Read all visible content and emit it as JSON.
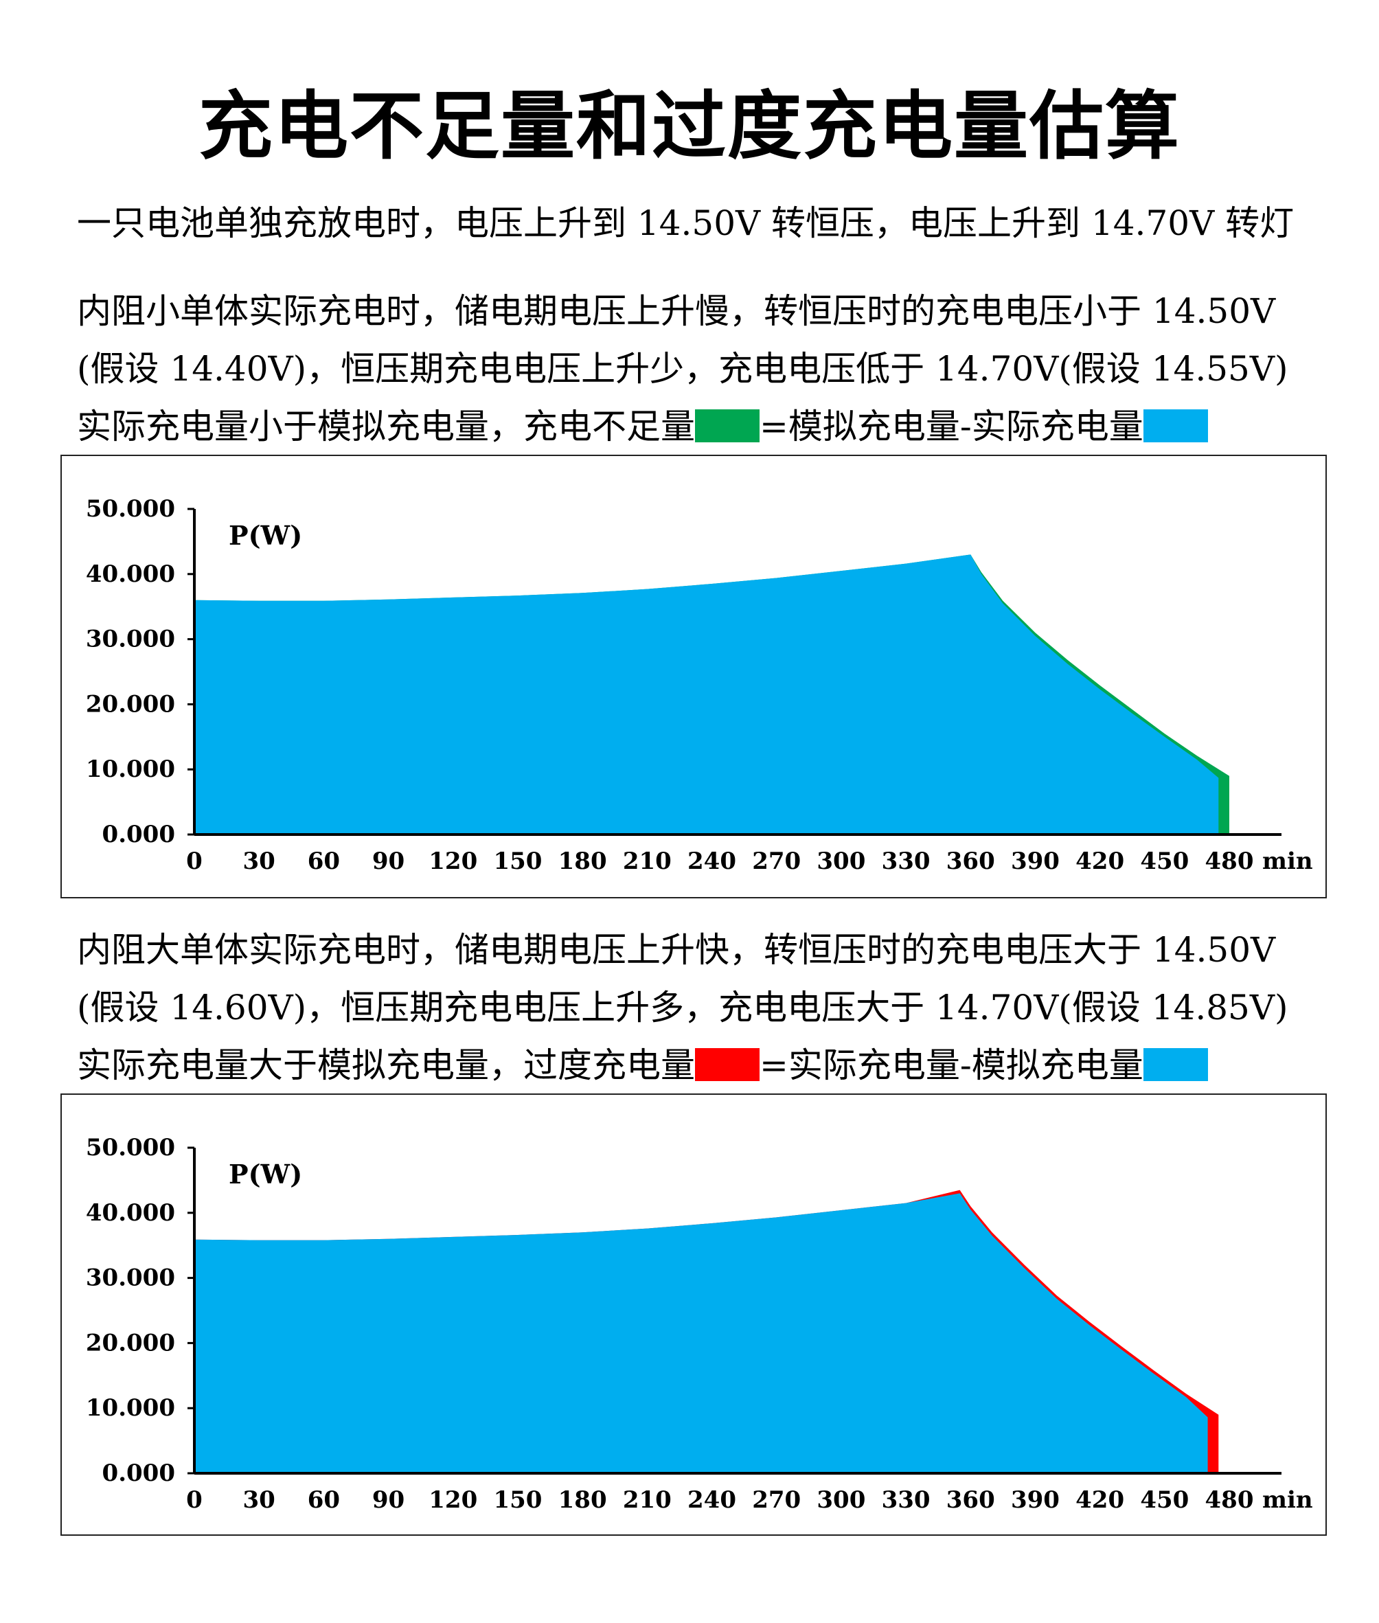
{
  "title": "充电不足量和过度充电量估算",
  "intro": "一只电池单独充放电时，电压上升到 14.50V 转恒压，电压上升到 14.70V 转灯",
  "section1": {
    "lines": [
      "内阻小单体实际充电时，储电期电压上升慢，转恒压时的充电电压小于 14.50V",
      "(假设 14.40V)，恒压期充电电压上升少，充电电压低于 14.70V(假设 14.55V)"
    ],
    "legend_text_a": "实际充电量小于模拟充电量，充电不足量",
    "legend_text_b": "=模拟充电量-实际充电量",
    "highlight_color": "#00a651",
    "area_color": "#00aeef"
  },
  "section2": {
    "lines": [
      "内阻大单体实际充电时，储电期电压上升快，转恒压时的充电电压大于 14.50V",
      "(假设 14.60V)，恒压期充电电压上升多，充电电压大于 14.70V(假设 14.85V)"
    ],
    "legend_text_a": "实际充电量大于模拟充电量，过度充电量",
    "legend_text_b": "=实际充电量-模拟充电量",
    "highlight_color": "#ff0000",
    "area_color": "#00aeef"
  },
  "chart_data": [
    {
      "type": "area",
      "ylabel": "P(W)",
      "xunit": "min",
      "ylim": [
        0,
        50
      ],
      "xlim": [
        0,
        480
      ],
      "y_ticks": [
        "0.000",
        "10.000",
        "20.000",
        "30.000",
        "40.000",
        "50.000"
      ],
      "x_ticks": [
        "0",
        "30",
        "60",
        "90",
        "120",
        "150",
        "180",
        "210",
        "240",
        "270",
        "300",
        "330",
        "360",
        "390",
        "420",
        "450",
        "480"
      ],
      "series": [
        {
          "fill": "#00aeef",
          "x": [
            0,
            30,
            60,
            90,
            120,
            150,
            180,
            210,
            240,
            270,
            300,
            330,
            360,
            365,
            375,
            390,
            405,
            420,
            435,
            450,
            465,
            475,
            475
          ],
          "y": [
            36.0,
            35.9,
            35.9,
            36.1,
            36.4,
            36.7,
            37.1,
            37.7,
            38.5,
            39.4,
            40.5,
            41.6,
            43.0,
            40.0,
            35.5,
            30.5,
            26.2,
            22.3,
            18.6,
            15.0,
            11.5,
            8.7,
            0
          ]
        }
      ],
      "highlight": {
        "color": "#00a651",
        "x": [
          0,
          30,
          60,
          90,
          120,
          150,
          180,
          210,
          240,
          270,
          300,
          330,
          360,
          365,
          375,
          390,
          405,
          420,
          435,
          450,
          465,
          480,
          480
        ],
        "y": [
          36.0,
          35.9,
          35.9,
          36.1,
          36.4,
          36.7,
          37.1,
          37.7,
          38.5,
          39.4,
          40.5,
          41.6,
          43.0,
          40.3,
          35.9,
          31.0,
          26.8,
          22.9,
          19.2,
          15.5,
          12.1,
          9.0,
          0
        ]
      }
    },
    {
      "type": "area",
      "ylabel": "P(W)",
      "xunit": "min",
      "ylim": [
        0,
        50
      ],
      "xlim": [
        0,
        480
      ],
      "y_ticks": [
        "0.000",
        "10.000",
        "20.000",
        "30.000",
        "40.000",
        "50.000"
      ],
      "x_ticks": [
        "0",
        "30",
        "60",
        "90",
        "120",
        "150",
        "180",
        "210",
        "240",
        "270",
        "300",
        "330",
        "360",
        "390",
        "420",
        "450",
        "480"
      ],
      "series": [
        {
          "fill": "#00aeef",
          "x": [
            0,
            30,
            60,
            90,
            120,
            150,
            180,
            210,
            240,
            270,
            300,
            330,
            355,
            360,
            370,
            385,
            400,
            415,
            430,
            445,
            460,
            470,
            470
          ],
          "y": [
            35.9,
            35.8,
            35.8,
            36.0,
            36.3,
            36.6,
            37.0,
            37.6,
            38.4,
            39.3,
            40.4,
            41.5,
            43.0,
            40.5,
            36.5,
            31.5,
            26.8,
            22.8,
            19.0,
            15.3,
            11.7,
            8.6,
            0
          ]
        }
      ],
      "highlight": {
        "color": "#ff0000",
        "x": [
          0,
          30,
          60,
          90,
          120,
          150,
          180,
          210,
          240,
          270,
          300,
          330,
          355,
          360,
          370,
          385,
          400,
          415,
          430,
          445,
          460,
          475,
          475
        ],
        "y": [
          35.9,
          35.8,
          35.8,
          36.0,
          36.3,
          36.6,
          37.0,
          37.6,
          38.4,
          39.3,
          40.4,
          41.5,
          43.5,
          41.0,
          37.0,
          32.0,
          27.3,
          23.3,
          19.5,
          15.8,
          12.2,
          9.0,
          0
        ]
      }
    }
  ]
}
